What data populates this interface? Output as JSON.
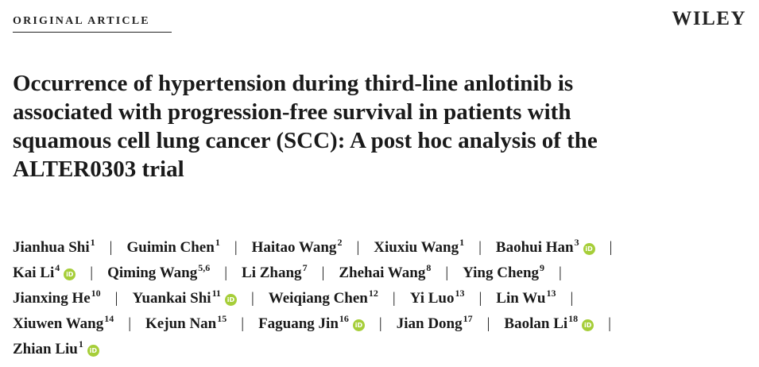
{
  "header": {
    "section_label": "ORIGINAL ARTICLE",
    "publisher": "WILEY"
  },
  "title_lines": [
    "Occurrence of hypertension during third-line anlotinib is",
    "associated with progression-free survival in patients with",
    "squamous cell lung cancer (SCC): A post hoc analysis of the",
    "ALTER0303 trial"
  ],
  "separator": "|",
  "orcid_icon_label": "iD",
  "authors": [
    {
      "name": "Jianhua Shi",
      "affil": "1",
      "orcid": false
    },
    {
      "name": "Guimin Chen",
      "affil": "1",
      "orcid": false
    },
    {
      "name": "Haitao Wang",
      "affil": "2",
      "orcid": false
    },
    {
      "name": "Xiuxiu Wang",
      "affil": "1",
      "orcid": false
    },
    {
      "name": "Baohui Han",
      "affil": "3",
      "orcid": true
    },
    {
      "name": "Kai Li",
      "affil": "4",
      "orcid": true
    },
    {
      "name": "Qiming Wang",
      "affil": "5,6",
      "orcid": false
    },
    {
      "name": "Li Zhang",
      "affil": "7",
      "orcid": false
    },
    {
      "name": "Zhehai Wang",
      "affil": "8",
      "orcid": false
    },
    {
      "name": "Ying Cheng",
      "affil": "9",
      "orcid": false
    },
    {
      "name": "Jianxing He",
      "affil": "10",
      "orcid": false
    },
    {
      "name": "Yuankai Shi",
      "affil": "11",
      "orcid": true
    },
    {
      "name": "Weiqiang Chen",
      "affil": "12",
      "orcid": false
    },
    {
      "name": "Yi Luo",
      "affil": "13",
      "orcid": false
    },
    {
      "name": "Lin Wu",
      "affil": "13",
      "orcid": false
    },
    {
      "name": "Xiuwen Wang",
      "affil": "14",
      "orcid": false
    },
    {
      "name": "Kejun Nan",
      "affil": "15",
      "orcid": false
    },
    {
      "name": "Faguang Jin",
      "affil": "16",
      "orcid": true
    },
    {
      "name": "Jian Dong",
      "affil": "17",
      "orcid": false
    },
    {
      "name": "Baolan Li",
      "affil": "18",
      "orcid": true
    },
    {
      "name": "Zhian Liu",
      "affil": "1",
      "orcid": true
    }
  ],
  "colors": {
    "orcid": "#a6ce39",
    "text": "#1a1a1a"
  }
}
